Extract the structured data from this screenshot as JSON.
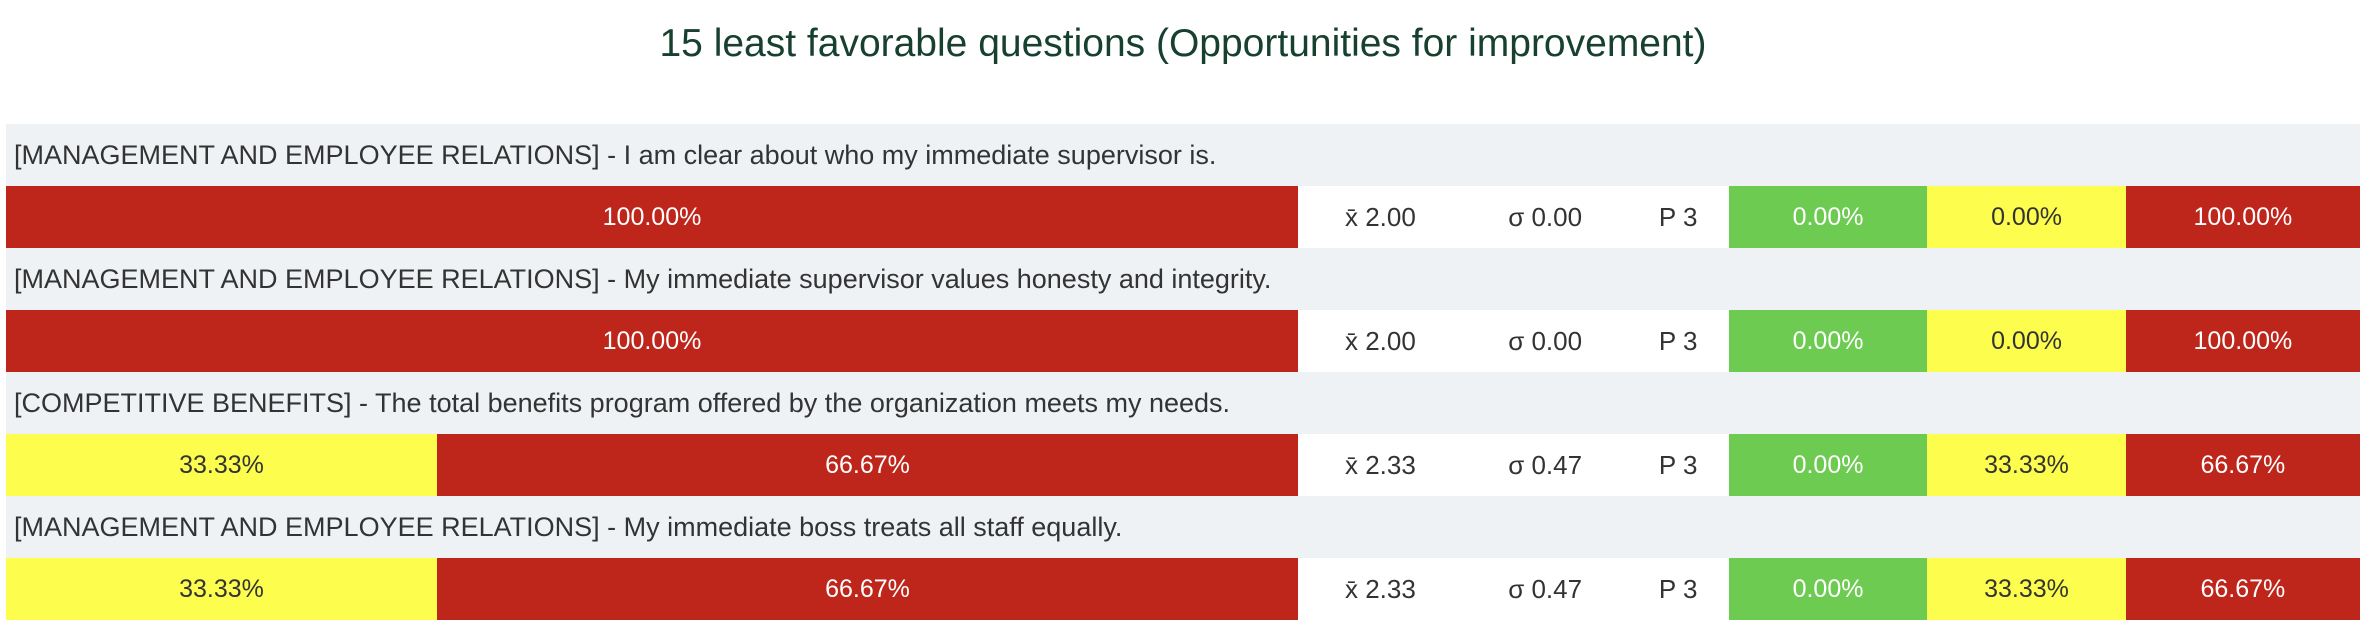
{
  "title": "15 least favorable questions (Opportunities for improvement)",
  "colors": {
    "favorable": "#6ccb50",
    "neutral": "#fdfd4e",
    "unfavorable": "#be261c",
    "label_bg": "#eff2f5",
    "title_text": "#17402f"
  },
  "chart_data": {
    "type": "bar",
    "orientation": "horizontal-stacked",
    "series_order": [
      "favorable",
      "neutral",
      "unfavorable"
    ],
    "questions": [
      {
        "label": "[MANAGEMENT AND EMPLOYEE RELATIONS] - I am clear about who my immediate supervisor is.",
        "mean": "x̄ 2.00",
        "sd": "σ 0.00",
        "p": "P 3",
        "favorable": 0.0,
        "neutral": 0.0,
        "unfavorable": 100.0,
        "favorable_text": "0.00%",
        "neutral_text": "0.00%",
        "unfavorable_text": "100.00%"
      },
      {
        "label": "[MANAGEMENT AND EMPLOYEE RELATIONS] - My immediate supervisor values honesty and integrity.",
        "mean": "x̄ 2.00",
        "sd": "σ 0.00",
        "p": "P 3",
        "favorable": 0.0,
        "neutral": 0.0,
        "unfavorable": 100.0,
        "favorable_text": "0.00%",
        "neutral_text": "0.00%",
        "unfavorable_text": "100.00%"
      },
      {
        "label": "[COMPETITIVE BENEFITS] - The total benefits program offered by the organization meets my needs.",
        "mean": "x̄ 2.33",
        "sd": "σ 0.47",
        "p": "P 3",
        "favorable": 0.0,
        "neutral": 33.33,
        "unfavorable": 66.67,
        "favorable_text": "0.00%",
        "neutral_text": "33.33%",
        "unfavorable_text": "66.67%"
      },
      {
        "label": "[MANAGEMENT AND EMPLOYEE RELATIONS] - My immediate boss treats all staff equally.",
        "mean": "x̄ 2.33",
        "sd": "σ 0.47",
        "p": "P 3",
        "favorable": 0.0,
        "neutral": 33.33,
        "unfavorable": 66.67,
        "favorable_text": "0.00%",
        "neutral_text": "33.33%",
        "unfavorable_text": "66.67%"
      }
    ]
  }
}
